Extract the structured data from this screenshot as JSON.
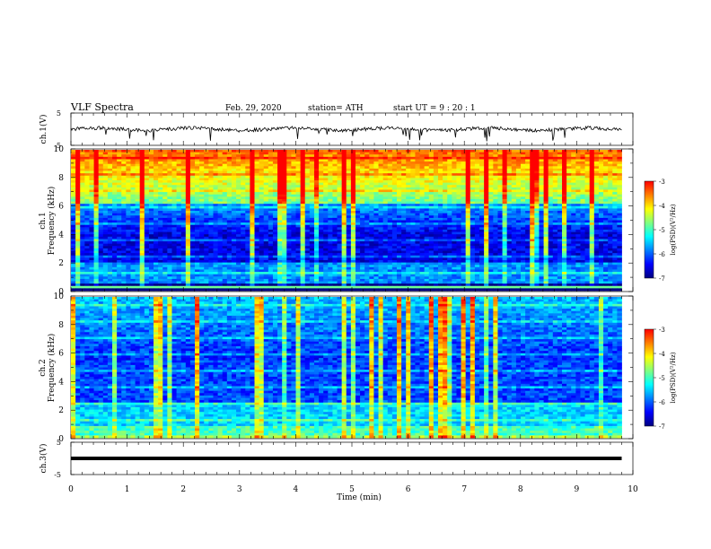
{
  "header": {
    "title": "VLF  Spectra",
    "date": "Feb. 29, 2020",
    "station": "station= ATH",
    "start_ut": "start  UT  =   9  : 20 : 1"
  },
  "chart_data": [
    {
      "type": "line",
      "ylabel": "ch.1(V)",
      "ylim": [
        -5,
        5
      ],
      "yticks": [
        "5",
        "-5"
      ],
      "baseline_v": 0.0,
      "noise": "broadband noise trace with frequent negative spikes"
    },
    {
      "type": "heatmap",
      "ylabel_channel": "ch.1",
      "ylabel": "Frequency  (kHz)",
      "ylim": [
        0,
        10
      ],
      "yticks": [
        "0",
        "2",
        "4",
        "6",
        "8",
        "10"
      ],
      "colorbar": {
        "label": "log(PSD)(V²/Hz)",
        "range": [
          -7,
          -3
        ],
        "ticks": [
          "-3",
          "-4",
          "-5",
          "-6",
          "-7"
        ]
      }
    },
    {
      "type": "heatmap",
      "ylabel_channel": "ch.2",
      "ylabel": "Frequency  (kHz)",
      "ylim": [
        0,
        10
      ],
      "yticks": [
        "0",
        "2",
        "4",
        "6",
        "8",
        "10"
      ],
      "colorbar": {
        "label": "log(PSD)(V²/Hz)",
        "range": [
          -7,
          -3
        ],
        "ticks": [
          "-3",
          "-4",
          "-5",
          "-6",
          "-7"
        ]
      }
    },
    {
      "type": "line",
      "ylabel": "ch.3(V)",
      "ylim": [
        -5,
        5
      ],
      "yticks": [
        "5",
        "-5"
      ],
      "baseline_v": 0.0,
      "noise": "flat thick trace"
    }
  ],
  "x_axis": {
    "xlabel": "Time  (min)",
    "xlim": [
      0,
      10
    ],
    "data_end_min": 9.8,
    "ticks": [
      "0",
      "1",
      "2",
      "3",
      "4",
      "5",
      "6",
      "7",
      "8",
      "9",
      "10"
    ]
  },
  "colors": {
    "colormap": [
      "#000080",
      "#0000ff",
      "#0080ff",
      "#00ffff",
      "#80ff80",
      "#ffff00",
      "#ff8000",
      "#ff0000",
      "#ffffff"
    ]
  }
}
